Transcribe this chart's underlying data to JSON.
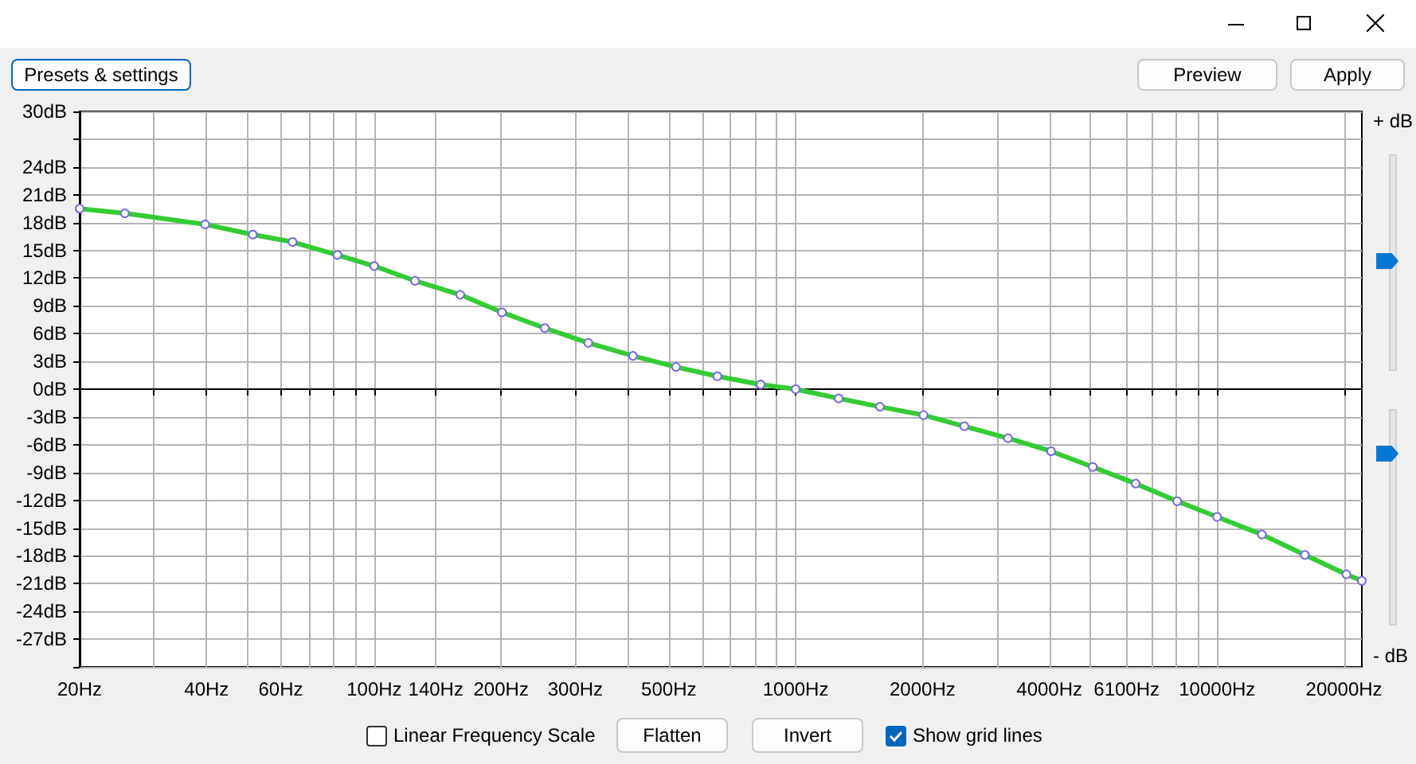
{
  "chart_data": {
    "type": "line",
    "log": "x",
    "grid": true,
    "marker": "circle",
    "line_style": "solid",
    "x": [
      20,
      25.6,
      39.7,
      51.5,
      64,
      81.8,
      100,
      125,
      160,
      201,
      254,
      322,
      411,
      520,
      652,
      826,
      1000,
      1265,
      1585,
      2010,
      2513,
      3190,
      4036,
      5070,
      6410,
      8040,
      10000,
      12770,
      16150,
      20270,
      22050
    ],
    "series": [
      {
        "color": "#33cc33",
        "values": [
          19.5,
          19.0,
          17.8,
          16.7,
          15.9,
          14.5,
          13.3,
          11.7,
          10.2,
          8.3,
          6.6,
          5.0,
          3.6,
          2.4,
          1.4,
          0.5,
          0,
          -1.0,
          -1.9,
          -2.8,
          -4.0,
          -5.3,
          -6.7,
          -8.4,
          -10.2,
          -12.1,
          -13.8,
          -15.7,
          -17.9,
          -20.0,
          -20.7
        ]
      }
    ],
    "xlim": [
      20,
      22050
    ],
    "xticks": [
      {
        "value": 20,
        "label": "20Hz"
      },
      {
        "value": 30,
        "label": null
      },
      {
        "value": 40,
        "label": "40Hz"
      },
      {
        "value": 50,
        "label": null
      },
      {
        "value": 60,
        "label": "60Hz"
      },
      {
        "value": 70,
        "label": null
      },
      {
        "value": 80,
        "label": null
      },
      {
        "value": 90,
        "label": null
      },
      {
        "value": 100,
        "label": "100Hz"
      },
      {
        "value": 140,
        "label": "140Hz"
      },
      {
        "value": 200,
        "label": "200Hz"
      },
      {
        "value": 300,
        "label": "300Hz"
      },
      {
        "value": 400,
        "label": null
      },
      {
        "value": 500,
        "label": "500Hz"
      },
      {
        "value": 600,
        "label": null
      },
      {
        "value": 700,
        "label": null
      },
      {
        "value": 800,
        "label": null
      },
      {
        "value": 900,
        "label": null
      },
      {
        "value": 1000,
        "label": "1000Hz"
      },
      {
        "value": 2000,
        "label": "2000Hz"
      },
      {
        "value": 3000,
        "label": null
      },
      {
        "value": 4000,
        "label": "4000Hz"
      },
      {
        "value": 5000,
        "label": null
      },
      {
        "value": 6100,
        "label": "6100Hz"
      },
      {
        "value": 7000,
        "label": null
      },
      {
        "value": 8000,
        "label": null
      },
      {
        "value": 9000,
        "label": null
      },
      {
        "value": 10000,
        "label": "10000Hz"
      },
      {
        "value": 20000,
        "label": "20000Hz"
      }
    ],
    "ylim": [
      -30,
      30
    ],
    "yticks": [
      {
        "value": -30,
        "label": null
      },
      {
        "value": -27,
        "label": "-27dB"
      },
      {
        "value": -24,
        "label": "-24dB"
      },
      {
        "value": -21,
        "label": "-21dB"
      },
      {
        "value": -18,
        "label": "-18dB"
      },
      {
        "value": -15,
        "label": "-15dB"
      },
      {
        "value": -12,
        "label": "-12dB"
      },
      {
        "value": -9,
        "label": "-9dB"
      },
      {
        "value": -6,
        "label": "-6dB"
      },
      {
        "value": -3,
        "label": "-3dB"
      },
      {
        "value": 0,
        "label": "0dB"
      },
      {
        "value": 3,
        "label": "3dB"
      },
      {
        "value": 6,
        "label": "6dB"
      },
      {
        "value": 9,
        "label": "9dB"
      },
      {
        "value": 12,
        "label": "12dB"
      },
      {
        "value": 15,
        "label": "15dB"
      },
      {
        "value": 18,
        "label": "18dB"
      },
      {
        "value": 21,
        "label": "21dB"
      },
      {
        "value": 24,
        "label": "24dB"
      },
      {
        "value": 27,
        "label": null
      },
      {
        "value": 30,
        "label": "30dB"
      }
    ],
    "annotations": [
      "Presets & settings",
      "Preview",
      "Apply",
      "+ dB",
      "- dB",
      "Linear Frequency Scale",
      "Flatten",
      "Invert",
      "Show grid lines"
    ]
  }
}
